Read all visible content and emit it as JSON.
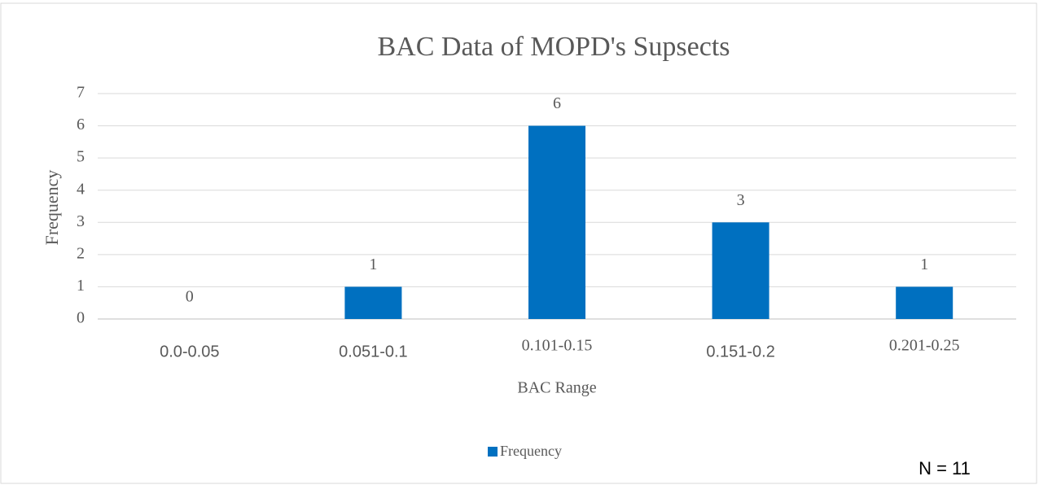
{
  "chart_data": {
    "type": "bar",
    "title": "BAC Data of MOPD's Supsects",
    "x_label": "BAC Range",
    "y_label": "Frequency",
    "categories": [
      "0.0-0.05",
      "0.051-0.1",
      "0.101-0.15",
      "0.151-0.2",
      "0.201-0.25"
    ],
    "series": [
      {
        "name": "Frequency",
        "color": "#0070c0",
        "values": [
          0,
          1,
          6,
          3,
          1
        ]
      }
    ],
    "ylim": [
      0,
      7
    ],
    "yticks": [
      0,
      1,
      2,
      3,
      4,
      5,
      6,
      7
    ],
    "grid": true,
    "legend": "bottom",
    "annotation": "N = 11"
  }
}
